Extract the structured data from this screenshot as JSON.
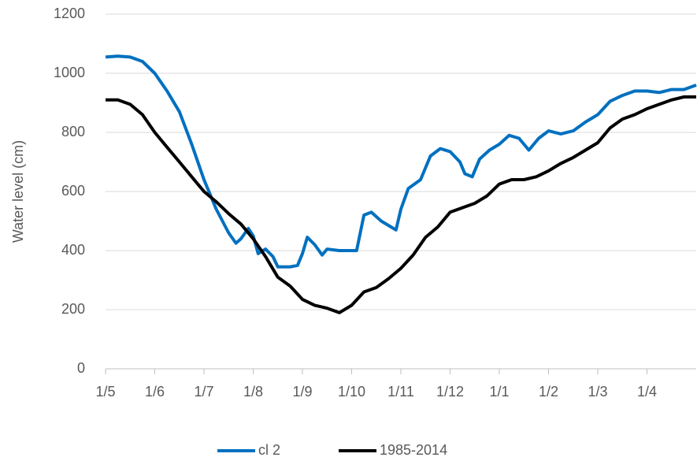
{
  "chart_data": {
    "type": "line",
    "ylabel": "Water level (cm)",
    "xlim": [
      0,
      12
    ],
    "xticks": [
      {
        "value": 0,
        "label": "1/5"
      },
      {
        "value": 1,
        "label": "1/6"
      },
      {
        "value": 2,
        "label": "1/7"
      },
      {
        "value": 3,
        "label": "1/8"
      },
      {
        "value": 4,
        "label": "1/9"
      },
      {
        "value": 5,
        "label": "1/10"
      },
      {
        "value": 6,
        "label": "1/11"
      },
      {
        "value": 7,
        "label": "1/12"
      },
      {
        "value": 8,
        "label": "1/1"
      },
      {
        "value": 9,
        "label": "1/2"
      },
      {
        "value": 10,
        "label": "1/3"
      },
      {
        "value": 11,
        "label": "1/4"
      }
    ],
    "ylim": [
      0,
      1200
    ],
    "yticks": [
      0,
      200,
      400,
      600,
      800,
      1000,
      1200
    ],
    "grid": true,
    "legend": "bottom",
    "series": [
      {
        "name": "cl 2",
        "color": "#0070c0",
        "x": [
          0,
          0.25,
          0.5,
          0.75,
          1,
          1.25,
          1.5,
          1.75,
          2,
          2.25,
          2.5,
          2.65,
          2.75,
          2.9,
          3,
          3.1,
          3.25,
          3.4,
          3.5,
          3.75,
          3.9,
          4,
          4.1,
          4.25,
          4.4,
          4.5,
          4.75,
          5,
          5.1,
          5.25,
          5.4,
          5.6,
          5.8,
          5.9,
          6,
          6.15,
          6.4,
          6.6,
          6.8,
          7,
          7.2,
          7.3,
          7.45,
          7.6,
          7.8,
          8,
          8.2,
          8.4,
          8.6,
          8.8,
          9,
          9.25,
          9.5,
          9.75,
          10,
          10.25,
          10.5,
          10.75,
          11,
          11.25,
          11.5,
          11.75,
          12
        ],
        "values": [
          1055,
          1058,
          1055,
          1040,
          1000,
          940,
          870,
          760,
          640,
          540,
          460,
          425,
          440,
          475,
          450,
          390,
          405,
          380,
          345,
          345,
          350,
          390,
          445,
          420,
          385,
          405,
          400,
          400,
          400,
          520,
          530,
          500,
          480,
          470,
          540,
          610,
          640,
          720,
          745,
          735,
          700,
          660,
          650,
          710,
          740,
          760,
          790,
          780,
          740,
          780,
          805,
          795,
          805,
          835,
          860,
          905,
          925,
          940,
          940,
          935,
          945,
          945,
          960
        ]
      },
      {
        "name": "1985-2014",
        "color": "#000000",
        "x": [
          0,
          0.25,
          0.5,
          0.75,
          1,
          1.25,
          1.5,
          1.75,
          2,
          2.25,
          2.5,
          2.75,
          3,
          3.25,
          3.5,
          3.75,
          4,
          4.25,
          4.5,
          4.75,
          5,
          5.25,
          5.5,
          5.75,
          6,
          6.25,
          6.5,
          6.75,
          7,
          7.25,
          7.5,
          7.75,
          8,
          8.25,
          8.5,
          8.75,
          9,
          9.25,
          9.5,
          9.75,
          10,
          10.25,
          10.5,
          10.75,
          11,
          11.25,
          11.5,
          11.75,
          12
        ],
        "values": [
          910,
          910,
          895,
          860,
          800,
          750,
          700,
          650,
          600,
          565,
          525,
          490,
          440,
          380,
          310,
          280,
          235,
          215,
          205,
          190,
          215,
          260,
          275,
          305,
          340,
          385,
          445,
          480,
          530,
          545,
          560,
          585,
          625,
          640,
          640,
          650,
          670,
          695,
          715,
          740,
          765,
          815,
          845,
          860,
          880,
          895,
          910,
          920,
          920
        ]
      }
    ]
  }
}
